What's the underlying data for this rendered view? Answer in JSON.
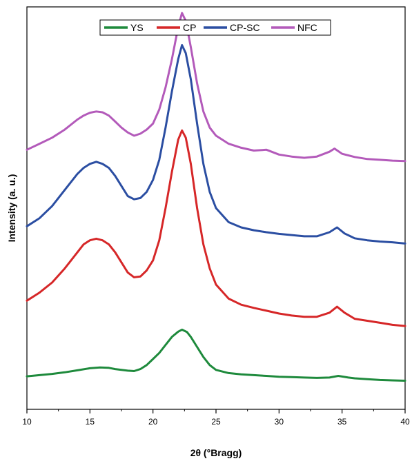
{
  "chart_data": {
    "type": "line",
    "xlabel": "2θ (°Bragg)",
    "ylabel": "Intensity (a. u.)",
    "xlim": [
      10,
      40
    ],
    "ylim": [
      0,
      1
    ],
    "x_ticks": [
      10,
      15,
      20,
      25,
      30,
      35,
      40
    ],
    "x_tick_labels": [
      "10",
      "15",
      "20",
      "25",
      "30",
      "35",
      "40"
    ],
    "y_ticks_shown": false,
    "grid": false,
    "legend_position": "top-center",
    "series": [
      {
        "name": "YS",
        "color": "#1e8a3c",
        "x": [
          10,
          11,
          12,
          13,
          14,
          15,
          15.8,
          16.5,
          17,
          18,
          18.5,
          19,
          19.5,
          20,
          20.5,
          21,
          21.5,
          22,
          22.3,
          22.7,
          23,
          23.5,
          24,
          24.5,
          25,
          26,
          27,
          28,
          29,
          30,
          31,
          32,
          33,
          34,
          34.7,
          35.5,
          36,
          37,
          38,
          39,
          40
        ],
        "y": [
          0.082,
          0.085,
          0.088,
          0.092,
          0.097,
          0.102,
          0.104,
          0.103,
          0.1,
          0.096,
          0.095,
          0.1,
          0.11,
          0.125,
          0.14,
          0.16,
          0.18,
          0.193,
          0.198,
          0.192,
          0.18,
          0.155,
          0.13,
          0.11,
          0.098,
          0.09,
          0.087,
          0.085,
          0.083,
          0.081,
          0.08,
          0.079,
          0.078,
          0.079,
          0.083,
          0.079,
          0.077,
          0.075,
          0.073,
          0.072,
          0.071
        ]
      },
      {
        "name": "CP",
        "color": "#d62728",
        "x": [
          10,
          11,
          12,
          13,
          14,
          14.5,
          15,
          15.5,
          16,
          16.5,
          17,
          17.5,
          18,
          18.5,
          19,
          19.5,
          20,
          20.5,
          21,
          21.5,
          22,
          22.3,
          22.6,
          23,
          23.5,
          24,
          24.5,
          25,
          26,
          27,
          28,
          29,
          30,
          31,
          32,
          33,
          34,
          34.6,
          35.2,
          36,
          37,
          38,
          39,
          40
        ],
        "y": [
          0.27,
          0.29,
          0.315,
          0.35,
          0.39,
          0.41,
          0.42,
          0.424,
          0.42,
          0.41,
          0.39,
          0.365,
          0.34,
          0.328,
          0.33,
          0.345,
          0.37,
          0.42,
          0.5,
          0.59,
          0.67,
          0.693,
          0.675,
          0.61,
          0.5,
          0.41,
          0.35,
          0.31,
          0.275,
          0.26,
          0.252,
          0.245,
          0.238,
          0.233,
          0.23,
          0.23,
          0.24,
          0.255,
          0.24,
          0.225,
          0.22,
          0.215,
          0.21,
          0.207
        ]
      },
      {
        "name": "CP-SC",
        "color": "#2b4ea2",
        "x": [
          10,
          11,
          12,
          13,
          14,
          14.5,
          15,
          15.5,
          16,
          16.5,
          17,
          17.5,
          18,
          18.5,
          19,
          19.5,
          20,
          20.5,
          21,
          21.5,
          22,
          22.3,
          22.6,
          23,
          23.5,
          24,
          24.5,
          25,
          26,
          27,
          28,
          29,
          30,
          31,
          32,
          33,
          34,
          34.6,
          35.2,
          36,
          37,
          38,
          39,
          40
        ],
        "y": [
          0.455,
          0.475,
          0.505,
          0.545,
          0.585,
          0.6,
          0.61,
          0.615,
          0.61,
          0.6,
          0.58,
          0.555,
          0.53,
          0.522,
          0.525,
          0.54,
          0.57,
          0.62,
          0.7,
          0.79,
          0.87,
          0.905,
          0.885,
          0.82,
          0.71,
          0.61,
          0.54,
          0.5,
          0.465,
          0.452,
          0.445,
          0.44,
          0.436,
          0.433,
          0.43,
          0.43,
          0.44,
          0.452,
          0.437,
          0.425,
          0.42,
          0.417,
          0.415,
          0.412
        ]
      },
      {
        "name": "NFC",
        "color": "#b35aba",
        "x": [
          10,
          11,
          12,
          13,
          14,
          14.5,
          15,
          15.5,
          16,
          16.5,
          17,
          17.5,
          18,
          18.5,
          19,
          19.5,
          20,
          20.5,
          21,
          21.5,
          22,
          22.3,
          22.6,
          23,
          23.5,
          24,
          24.5,
          25,
          26,
          27,
          28,
          29,
          30,
          31,
          32,
          33,
          34,
          34.4,
          35,
          36,
          37,
          38,
          39,
          40
        ],
        "y": [
          0.645,
          0.66,
          0.675,
          0.695,
          0.72,
          0.73,
          0.737,
          0.74,
          0.738,
          0.73,
          0.715,
          0.7,
          0.688,
          0.68,
          0.685,
          0.695,
          0.71,
          0.745,
          0.8,
          0.87,
          0.95,
          0.985,
          0.965,
          0.9,
          0.81,
          0.74,
          0.7,
          0.68,
          0.66,
          0.65,
          0.643,
          0.645,
          0.633,
          0.628,
          0.625,
          0.628,
          0.64,
          0.648,
          0.635,
          0.627,
          0.622,
          0.62,
          0.618,
          0.617
        ]
      }
    ]
  }
}
